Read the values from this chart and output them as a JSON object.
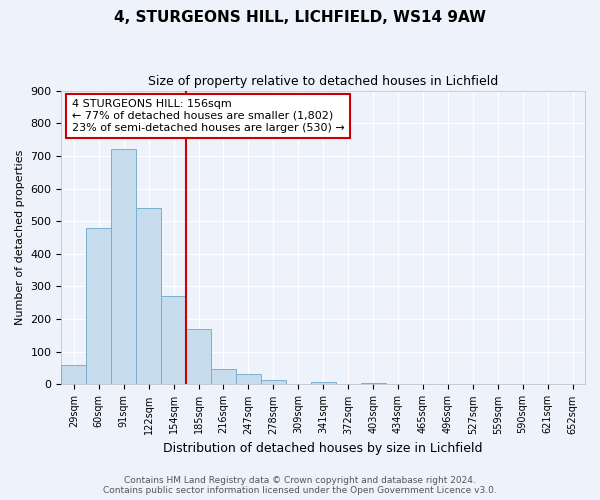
{
  "title": "4, STURGEONS HILL, LICHFIELD, WS14 9AW",
  "subtitle": "Size of property relative to detached houses in Lichfield",
  "xlabel": "Distribution of detached houses by size in Lichfield",
  "ylabel": "Number of detached properties",
  "bar_labels": [
    "29sqm",
    "60sqm",
    "91sqm",
    "122sqm",
    "154sqm",
    "185sqm",
    "216sqm",
    "247sqm",
    "278sqm",
    "309sqm",
    "341sqm",
    "372sqm",
    "403sqm",
    "434sqm",
    "465sqm",
    "496sqm",
    "527sqm",
    "559sqm",
    "590sqm",
    "621sqm",
    "652sqm"
  ],
  "bar_values": [
    60,
    480,
    720,
    540,
    270,
    170,
    47,
    33,
    14,
    0,
    8,
    0,
    5,
    0,
    0,
    0,
    0,
    0,
    0,
    0,
    0
  ],
  "bar_color": "#c6dcec",
  "bar_edge_color": "#7ab0cc",
  "ylim": [
    0,
    900
  ],
  "yticks": [
    0,
    100,
    200,
    300,
    400,
    500,
    600,
    700,
    800,
    900
  ],
  "property_line_label": "4 STURGEONS HILL: 156sqm",
  "annotation_line1": "← 77% of detached houses are smaller (1,802)",
  "annotation_line2": "23% of semi-detached houses are larger (530) →",
  "annotation_box_color": "#ffffff",
  "annotation_box_edge_color": "#cc0000",
  "vline_color": "#cc0000",
  "background_color": "#eef2fb",
  "grid_color": "#ffffff",
  "footer_line1": "Contains HM Land Registry data © Crown copyright and database right 2024.",
  "footer_line2": "Contains public sector information licensed under the Open Government Licence v3.0."
}
